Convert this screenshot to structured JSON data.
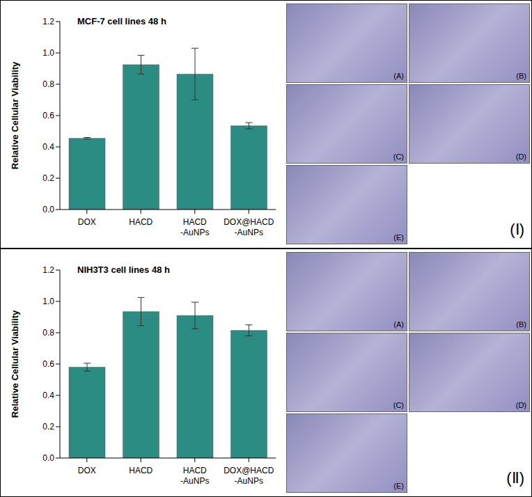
{
  "chart_data": [
    {
      "type": "bar",
      "title": "MCF-7 cell lines 48 h",
      "y_label": "Relative Cellular Viability",
      "categories": [
        "DOX",
        "HACD",
        "HACD-AuNPs",
        "DOX@HACD-AuNPs"
      ],
      "values": [
        0.455,
        0.925,
        0.865,
        0.535
      ],
      "errors": [
        0.005,
        0.06,
        0.165,
        0.02
      ],
      "color": "#2a8c82",
      "ylim": [
        0,
        1.2
      ],
      "yticks": [
        {
          "value": 0,
          "label": "0.0"
        },
        0.2,
        0.4,
        0.6,
        0.8,
        {
          "value": 1,
          "label": "1.0"
        },
        1.2
      ],
      "grid": false
    },
    {
      "type": "bar",
      "title": "NIH3T3 cell lines 48 h",
      "y_label": "Relative Cellular Viability",
      "categories": [
        "DOX",
        "HACD",
        "HACD-AuNPs",
        "DOX@HACD-AuNPs"
      ],
      "values": [
        0.58,
        0.935,
        0.91,
        0.815
      ],
      "errors": [
        0.025,
        0.09,
        0.085,
        0.035
      ],
      "color": "#2a8c82",
      "ylim": [
        0,
        1.2
      ],
      "yticks": [
        {
          "value": 0,
          "label": "0.0"
        },
        0.2,
        0.4,
        0.6,
        0.8,
        {
          "value": 1,
          "label": "1.0"
        },
        1.2
      ],
      "grid": false
    }
  ],
  "panels": [
    {
      "label": "(Ⅰ)",
      "image_labels": [
        "(A)",
        "(B)",
        "(C)",
        "(D)",
        "(E)"
      ]
    },
    {
      "label": "(Ⅱ)",
      "image_labels": [
        "(A)",
        "(B)",
        "(C)",
        "(D)",
        "(E)"
      ]
    }
  ]
}
